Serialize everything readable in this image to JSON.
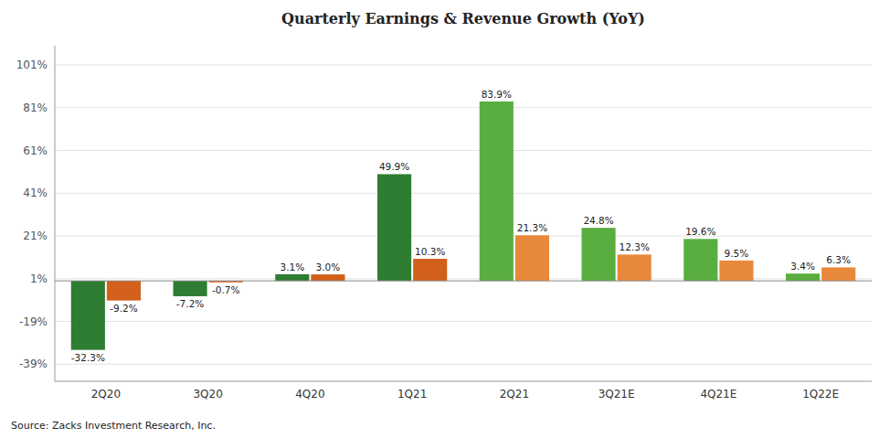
{
  "chart_data": {
    "type": "bar",
    "title": "Quarterly Earnings & Revenue Growth (YoY)",
    "categories": [
      "2Q20",
      "3Q20",
      "4Q20",
      "1Q21",
      "2Q21",
      "3Q21E",
      "4Q21E",
      "1Q22E"
    ],
    "series": [
      {
        "values": [
          -32.3,
          -7.2,
          3.1,
          49.9,
          83.9,
          24.8,
          19.6,
          3.4
        ],
        "value_labels": [
          "-32.3%",
          "-7.2%",
          "3.1%",
          "49.9%",
          "83.9%",
          "24.8%",
          "19.6%",
          "3.4%"
        ],
        "colors": [
          "#2e7d32",
          "#2e7d32",
          "#2e7d32",
          "#2e7d32",
          "#5aad3f",
          "#5aad3f",
          "#5aad3f",
          "#5aad3f"
        ]
      },
      {
        "values": [
          -9.2,
          -0.7,
          3.0,
          10.3,
          21.3,
          12.3,
          9.5,
          6.3
        ],
        "value_labels": [
          "-9.2%",
          "-0.7%",
          "3.0%",
          "10.3%",
          "21.3%",
          "12.3%",
          "9.5%",
          "6.3%"
        ],
        "colors": [
          "#d2601a",
          "#d2601a",
          "#d2601a",
          "#d2601a",
          "#e8883a",
          "#e8883a",
          "#e8883a",
          "#e8883a"
        ]
      }
    ],
    "ylim": [
      -47,
      110
    ],
    "yticks": [
      {
        "value": -39,
        "label": "-39%"
      },
      {
        "value": -19,
        "label": "-19%"
      },
      {
        "value": 1,
        "label": "1%"
      },
      {
        "value": 21,
        "label": "21%"
      },
      {
        "value": 41,
        "label": "41%"
      },
      {
        "value": 61,
        "label": "61%"
      },
      {
        "value": 81,
        "label": "81%"
      },
      {
        "value": 101,
        "label": "101%"
      }
    ],
    "grid": true,
    "data_labels": true,
    "annotations": [
      "Source: Zacks Investment Research, Inc."
    ]
  }
}
